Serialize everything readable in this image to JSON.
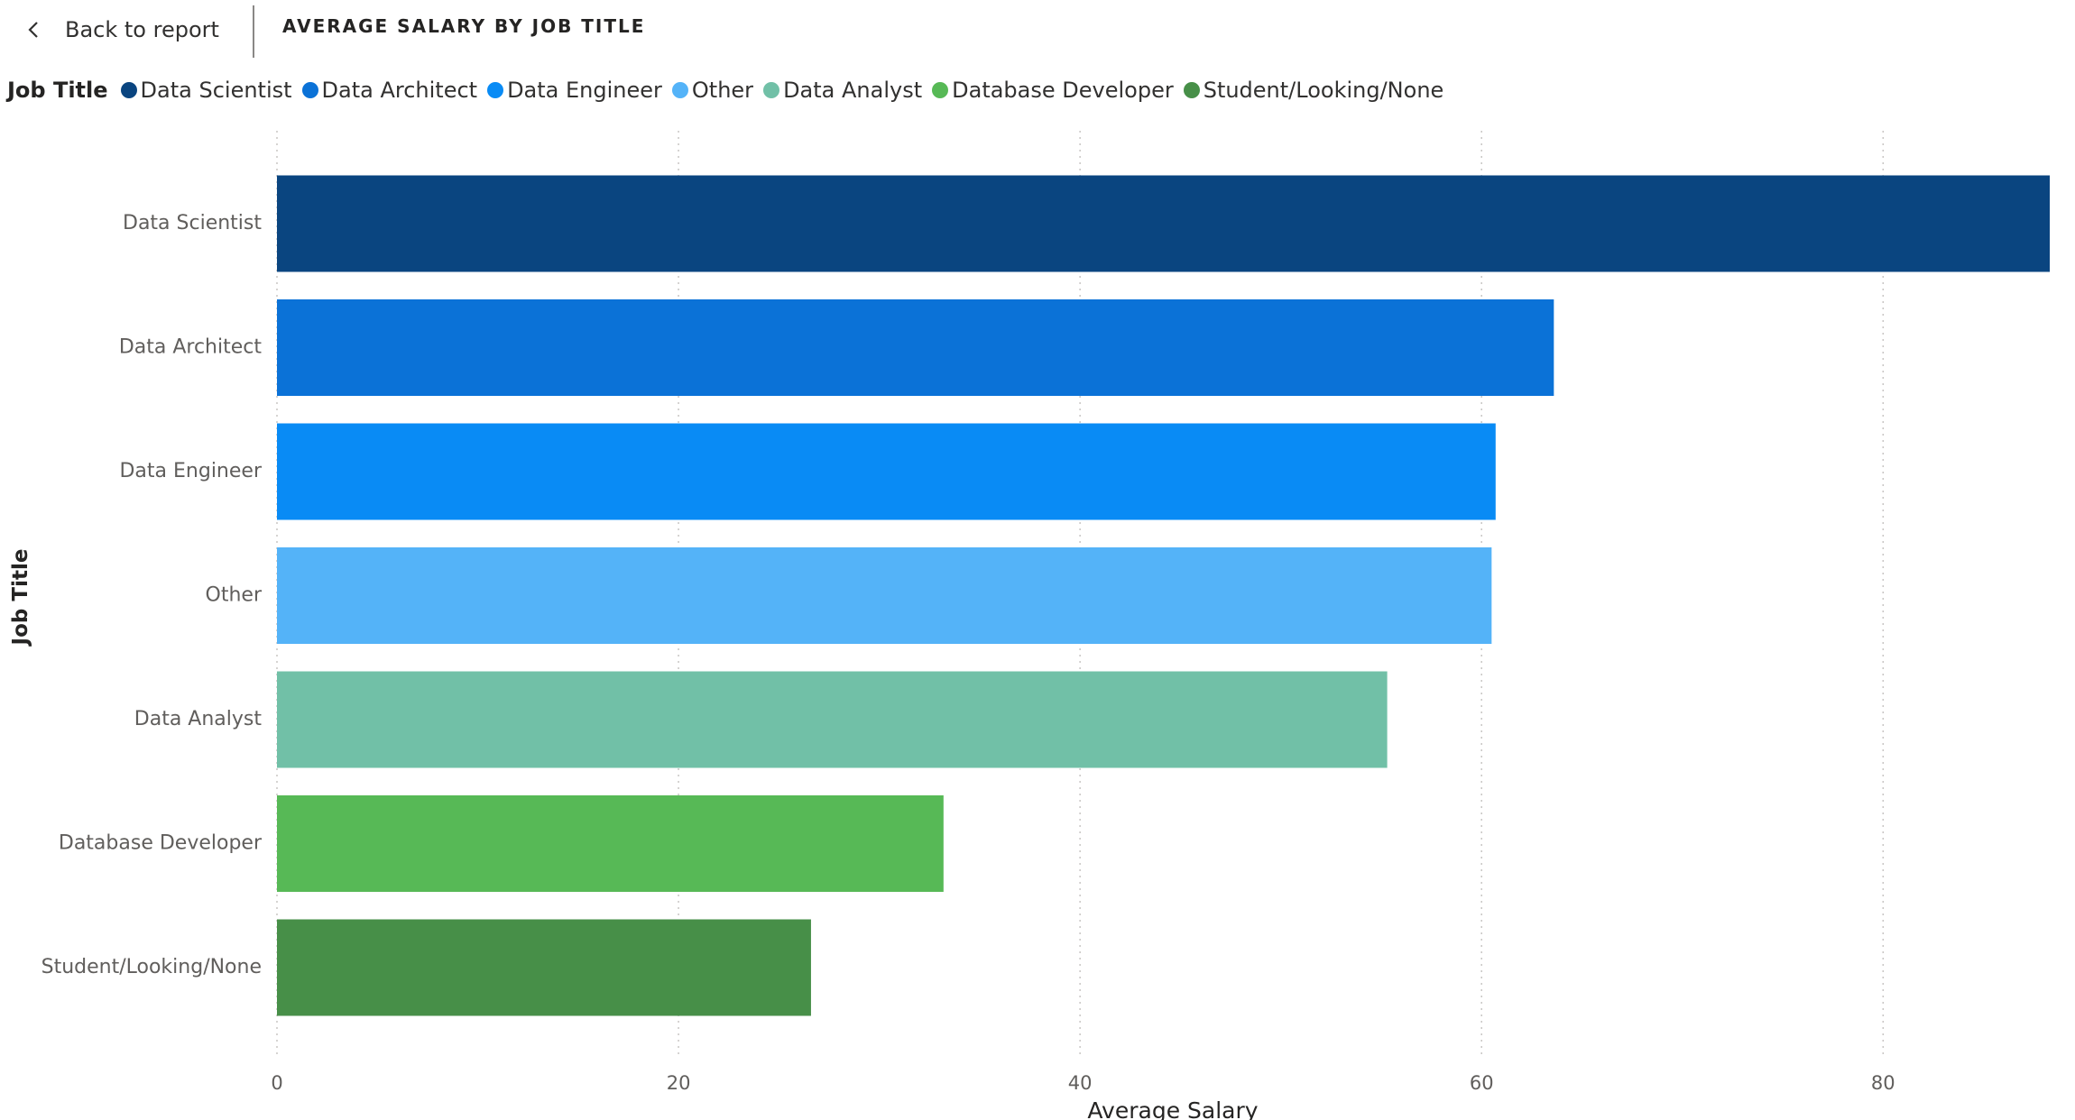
{
  "topbar": {
    "back_label": "Back to report",
    "visual_title": "AVERAGE SALARY BY JOB TITLE"
  },
  "legend": {
    "title": "Job Title",
    "items": [
      {
        "label": "Data Scientist",
        "color": "#0a4580"
      },
      {
        "label": "Data Architect",
        "color": "#0b72d7"
      },
      {
        "label": "Data Engineer",
        "color": "#098bf5"
      },
      {
        "label": "Other",
        "color": "#54b3f8"
      },
      {
        "label": "Data Analyst",
        "color": "#71c0a7"
      },
      {
        "label": "Database Developer",
        "color": "#57b956"
      },
      {
        "label": "Student/Looking/None",
        "color": "#478f48"
      }
    ]
  },
  "chart_data": {
    "type": "bar",
    "orientation": "horizontal",
    "categories": [
      "Data Scientist",
      "Data Architect",
      "Data Engineer",
      "Other",
      "Data Analyst",
      "Database Developer",
      "Student/Looking/None"
    ],
    "values": [
      88.3,
      63.6,
      60.7,
      60.5,
      55.3,
      33.2,
      26.6
    ],
    "colors": [
      "#0a4580",
      "#0b72d7",
      "#098bf5",
      "#54b3f8",
      "#71c0a7",
      "#57b956",
      "#478f48"
    ],
    "xlabel": "Average Salary",
    "ylabel": "Job Title",
    "xlim": [
      0,
      88.3
    ],
    "xticks": [
      0,
      20,
      40,
      60,
      80
    ],
    "grid": "vertical-dotted"
  }
}
